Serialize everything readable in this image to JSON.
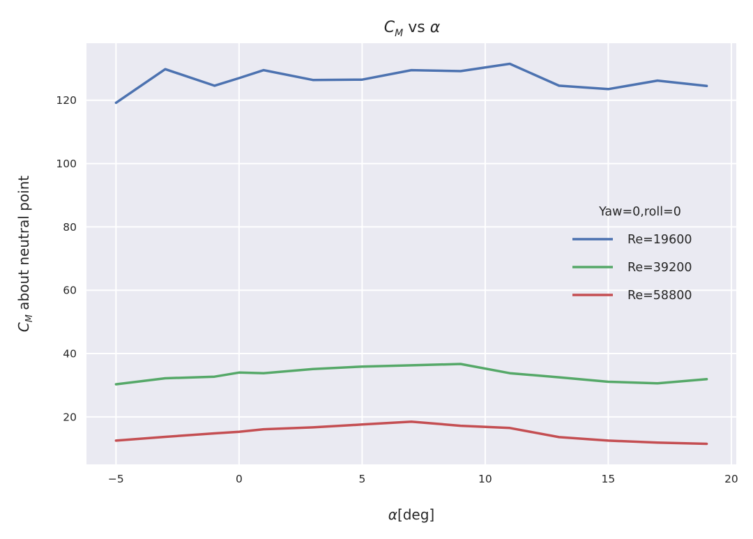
{
  "chart_data": {
    "type": "line",
    "title_main": "C",
    "title_sub": "M",
    "title_rest": " vs ",
    "title_alpha": "α",
    "xlabel_alpha": "α",
    "xlabel_rest": "[deg]",
    "ylabel_main": "C",
    "ylabel_sub": "M",
    "ylabel_rest": " about neutral point",
    "xlim": [
      -6.2,
      20.2
    ],
    "ylim": [
      5,
      138
    ],
    "xticks": [
      -5,
      0,
      5,
      10,
      15,
      20
    ],
    "xtick_labels": [
      "−5",
      "0",
      "5",
      "10",
      "15",
      "20"
    ],
    "yticks": [
      20,
      40,
      60,
      80,
      100,
      120
    ],
    "ytick_labels": [
      "20",
      "40",
      "60",
      "80",
      "100",
      "120"
    ],
    "grid": true,
    "legend": {
      "title": "Yaw=0,roll=0",
      "placement": "center-right"
    },
    "series": [
      {
        "name": "Re=19600",
        "color": "#4c72b0",
        "x": [
          -5,
          -3,
          -1,
          0,
          1,
          3,
          5,
          7,
          9,
          11,
          13,
          15,
          17,
          19
        ],
        "y": [
          119.2,
          129.8,
          124.6,
          127.0,
          129.5,
          126.4,
          126.5,
          129.5,
          129.2,
          131.5,
          124.6,
          123.5,
          126.2,
          124.5
        ]
      },
      {
        "name": "Re=39200",
        "color": "#55a868",
        "x": [
          -5,
          -3,
          -1,
          0,
          1,
          3,
          5,
          7,
          9,
          11,
          13,
          15,
          17,
          19
        ],
        "y": [
          30.3,
          32.2,
          32.7,
          34.0,
          33.8,
          35.1,
          35.9,
          36.3,
          36.7,
          33.8,
          32.5,
          31.1,
          30.6,
          31.9
        ]
      },
      {
        "name": "Re=58800",
        "color": "#c44e52",
        "x": [
          -5,
          -3,
          -1,
          0,
          1,
          3,
          5,
          7,
          9,
          11,
          13,
          15,
          17,
          19
        ],
        "y": [
          12.5,
          13.7,
          14.8,
          15.3,
          16.1,
          16.7,
          17.6,
          18.5,
          17.2,
          16.5,
          13.6,
          12.5,
          11.9,
          11.5
        ]
      }
    ]
  }
}
